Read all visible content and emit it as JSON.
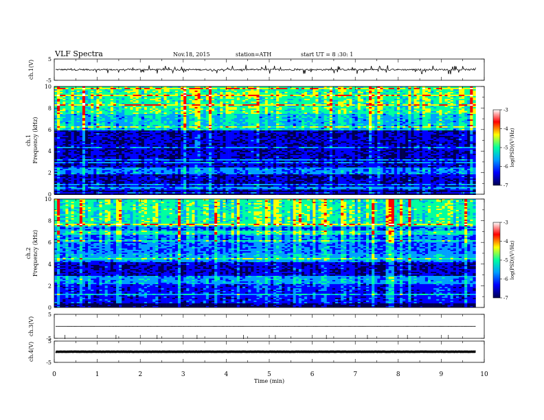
{
  "header": {
    "title": "VLF Spectra",
    "date": "Nov.18, 2015",
    "station": "station=ATH",
    "start": "start  UT  =   8  :30: 1"
  },
  "colors": {
    "spectrum": [
      "#000050",
      "#0000ff",
      "#00a0ff",
      "#00ffa0",
      "#ffff00",
      "#ff0000",
      "#ffffff"
    ],
    "trace": "#000000"
  },
  "chart_data": [
    {
      "type": "line",
      "panel": "ch1-waveform",
      "ylabel": "ch.1(V)",
      "ylim": [
        -5,
        5
      ],
      "yticks": [
        "5",
        "-5"
      ],
      "description_values": "waveform oscillating around 0 V with spikes up to about +2 V and down to about -2 V",
      "xlim": [
        0,
        10
      ]
    },
    {
      "type": "heatmap",
      "panel": "ch1-spectrogram",
      "ylabel": "ch.1\nFrequency  (kHz)",
      "ylim": [
        0,
        10
      ],
      "yticks": [
        "0",
        "2",
        "4",
        "6",
        "8",
        "10"
      ],
      "xlim": [
        0,
        10
      ],
      "data_end_min": 9.8,
      "colorbar": {
        "label": "log(PSD)(V²/Hz)",
        "range": [
          -7,
          -3
        ],
        "ticks": [
          "-3",
          "-4",
          "-5",
          "-6",
          "-7"
        ]
      },
      "bands": [
        {
          "f": [
            0,
            0.4
          ],
          "logpsd": -7.0
        },
        {
          "f": [
            0.4,
            2.0
          ],
          "logpsd": -6.6
        },
        {
          "f": [
            2.0,
            2.5
          ],
          "logpsd": -5.8
        },
        {
          "f": [
            2.5,
            6.0
          ],
          "logpsd": -6.6
        },
        {
          "f": [
            6.0,
            7.5
          ],
          "logpsd": -5.4
        },
        {
          "f": [
            7.5,
            10.0
          ],
          "logpsd": -4.9
        }
      ]
    },
    {
      "type": "heatmap",
      "panel": "ch2-spectrogram",
      "ylabel": "ch.2\nFrequency  (kHz)",
      "ylim": [
        0,
        10
      ],
      "yticks": [
        "0",
        "2",
        "4",
        "6",
        "8",
        "10"
      ],
      "xlim": [
        0,
        10
      ],
      "data_end_min": 9.8,
      "colorbar": {
        "label": "log(PSD)(V²/Hz)",
        "range": [
          -7,
          -3
        ],
        "ticks": [
          "-3",
          "-4",
          "-5",
          "-6",
          "-7"
        ]
      },
      "bands": [
        {
          "f": [
            0,
            0.4
          ],
          "logpsd": -7.0
        },
        {
          "f": [
            0.4,
            2.2
          ],
          "logpsd": -6.3
        },
        {
          "f": [
            2.2,
            3.0
          ],
          "logpsd": -5.7
        },
        {
          "f": [
            3.0,
            4.4
          ],
          "logpsd": -6.6
        },
        {
          "f": [
            4.4,
            5.0
          ],
          "logpsd": -5.6
        },
        {
          "f": [
            5.0,
            7.5
          ],
          "logpsd": -5.9
        },
        {
          "f": [
            7.5,
            10.0
          ],
          "logpsd": -5.0
        }
      ]
    },
    {
      "type": "line",
      "panel": "ch3-waveform",
      "ylabel": "ch.3(V)",
      "ylim": [
        -5,
        5
      ],
      "yticks": [
        "5",
        "-5"
      ],
      "xlim": [
        0,
        10
      ],
      "description_values": "near-flat trace at about 0 V"
    },
    {
      "type": "line",
      "panel": "ch4-waveform",
      "ylabel": "ch.4(V)",
      "ylim": [
        -5,
        5
      ],
      "yticks": [
        "5",
        "-5"
      ],
      "xlim": [
        0,
        10
      ],
      "description_values": "flat thick trace at about 0 V"
    }
  ],
  "xaxis": {
    "label": "Time  (min)",
    "ticks": [
      "0",
      "1",
      "2",
      "3",
      "4",
      "5",
      "6",
      "7",
      "8",
      "9",
      "10"
    ]
  }
}
